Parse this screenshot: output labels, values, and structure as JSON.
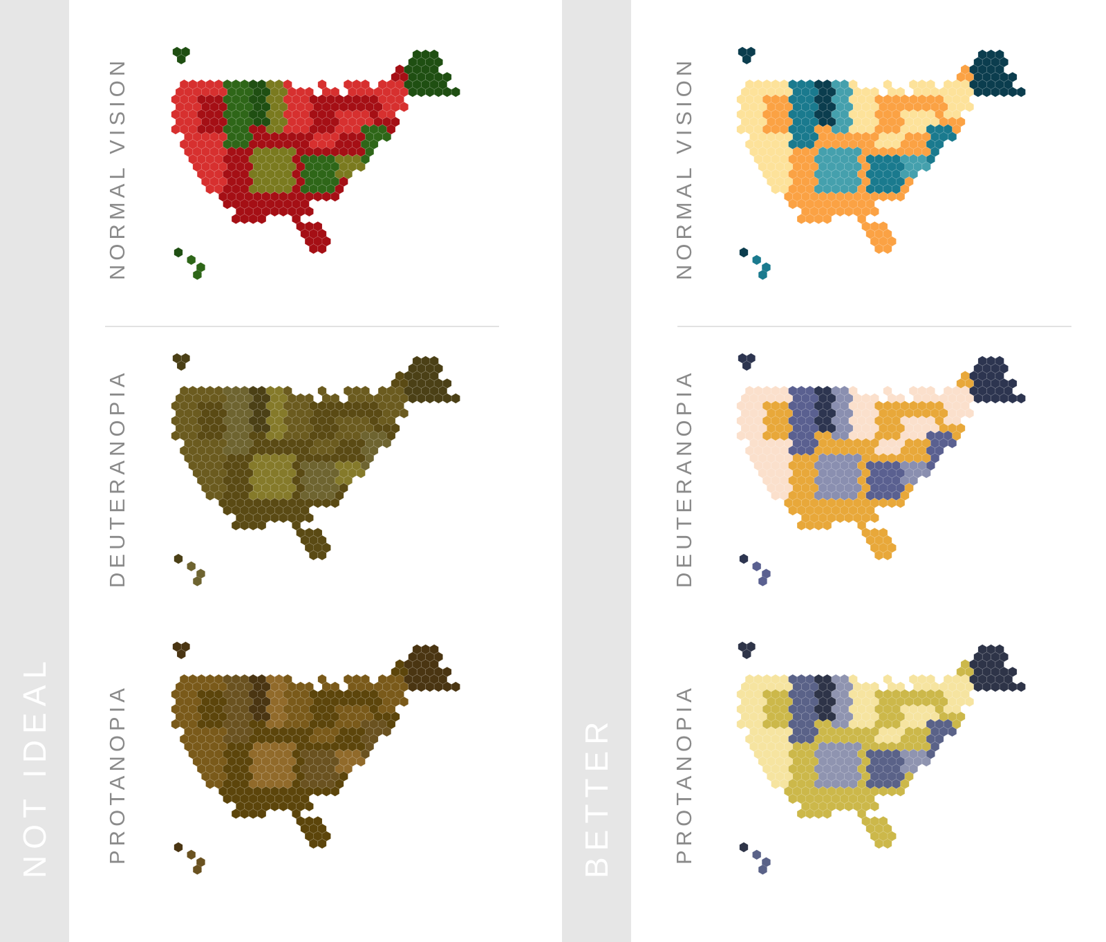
{
  "columns": [
    {
      "id": "not-ideal",
      "label": "NOT IDEAL",
      "panels": [
        {
          "label": "NORMAL VISION",
          "palette": {
            "outer": "#a50f15",
            "mid": "#d7302f",
            "olive": "#7a7a1f",
            "dark": "#2e6618",
            "darker": "#1f4f12"
          }
        },
        {
          "label": "DEUTERANOPIA",
          "palette": {
            "outer": "#5a4a14",
            "mid": "#6b5b1f",
            "olive": "#857a2a",
            "dark": "#6e6430",
            "darker": "#4b4016"
          }
        },
        {
          "label": "PROTANOPIA",
          "palette": {
            "outer": "#5c450b",
            "mid": "#7a5a1a",
            "olive": "#916a2a",
            "dark": "#6a5220",
            "darker": "#4a3512"
          }
        }
      ]
    },
    {
      "id": "better",
      "label": "BETTER",
      "panels": [
        {
          "label": "NORMAL VISION",
          "palette": {
            "outer": "#fba244",
            "mid": "#fde29a",
            "olive": "#45a0ad",
            "dark": "#1a7a8e",
            "darker": "#0b3d4e"
          }
        },
        {
          "label": "DEUTERANOPIA",
          "palette": {
            "outer": "#e8a83a",
            "mid": "#fbe0cc",
            "olive": "#8a8fb0",
            "dark": "#5a6090",
            "darker": "#2d3550"
          }
        },
        {
          "label": "PROTANOPIA",
          "palette": {
            "outer": "#ccb84a",
            "mid": "#f6e4a0",
            "olive": "#8f94b0",
            "dark": "#5a6288",
            "darker": "#2e3448"
          }
        }
      ]
    }
  ]
}
